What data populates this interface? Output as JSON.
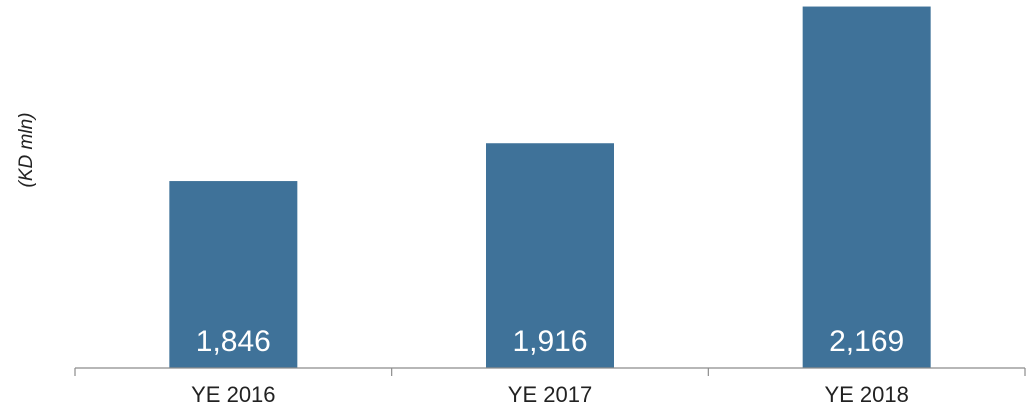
{
  "chart_data": {
    "type": "bar",
    "categories": [
      "YE 2016",
      "YE 2017",
      "YE 2018"
    ],
    "values": [
      1846,
      1916,
      2169
    ],
    "value_labels": [
      "1,846",
      "1,916",
      "2,169"
    ],
    "title": "",
    "xlabel": "",
    "ylabel": "(KD mln)",
    "ylim": [
      1500,
      2170
    ],
    "grid": false,
    "legend": "none",
    "bar_color": "#3f7299"
  }
}
